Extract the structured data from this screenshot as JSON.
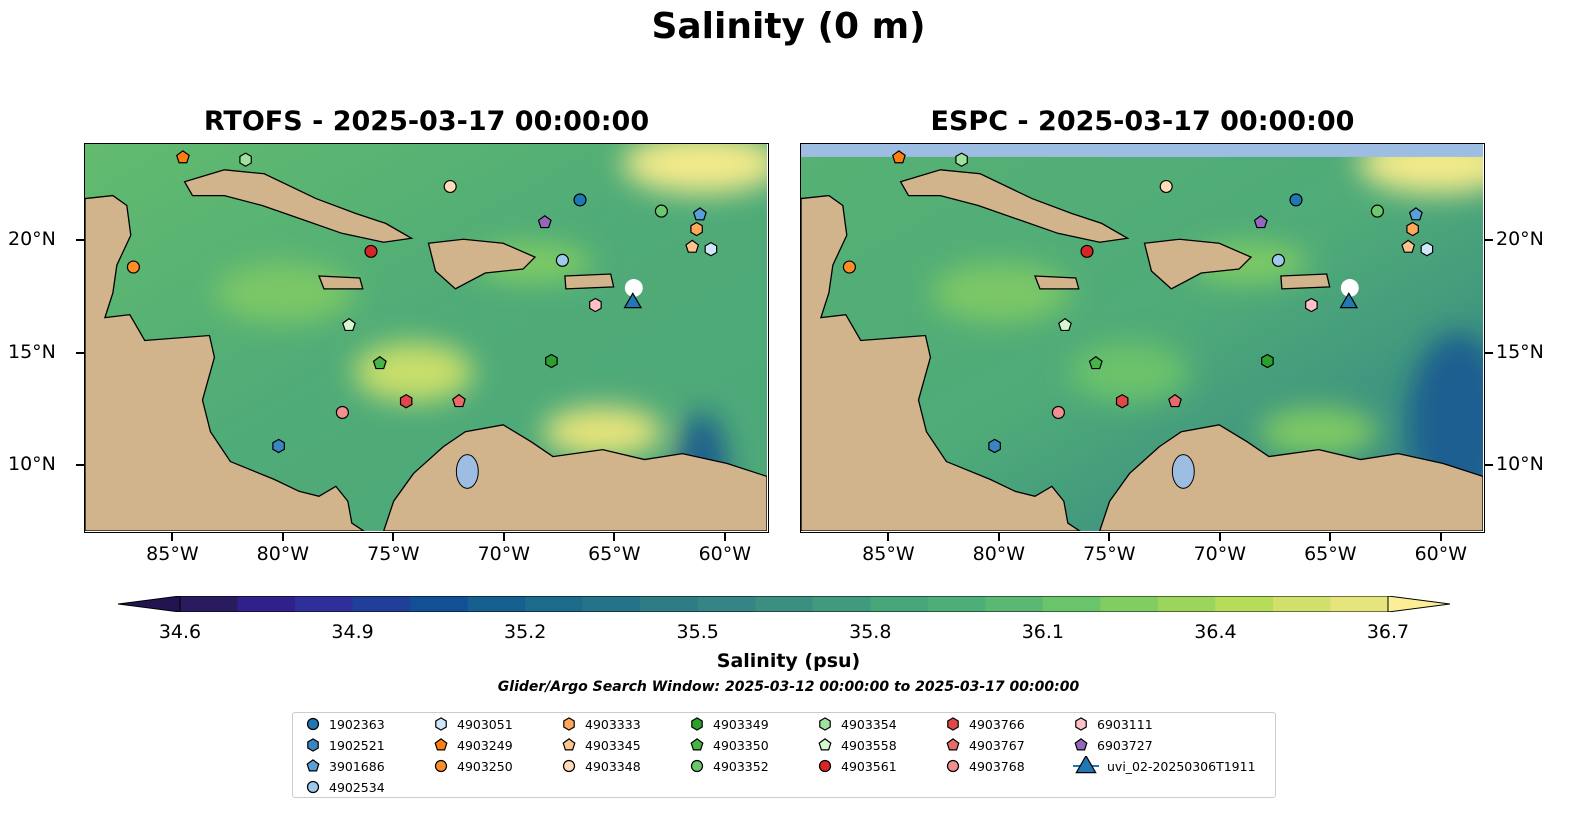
{
  "suptitle": "Salinity (0 m)",
  "panels": [
    {
      "title": "RTOFS - 2025-03-17 00:00:00",
      "model": "RTOFS"
    },
    {
      "title": "ESPC - 2025-03-17 00:00:00",
      "model": "ESPC"
    }
  ],
  "axes": {
    "lon_range": [
      -89,
      -58
    ],
    "lat_range": [
      7,
      24.3
    ],
    "lon_ticks": [
      {
        "v": -85,
        "label": "85°W"
      },
      {
        "v": -80,
        "label": "80°W"
      },
      {
        "v": -75,
        "label": "75°W"
      },
      {
        "v": -70,
        "label": "70°W"
      },
      {
        "v": -65,
        "label": "65°W"
      },
      {
        "v": -60,
        "label": "60°W"
      }
    ],
    "lat_ticks": [
      {
        "v": 20,
        "label": "20°N"
      },
      {
        "v": 15,
        "label": "15°N"
      },
      {
        "v": 10,
        "label": "10°N"
      }
    ]
  },
  "colorbar": {
    "label": "Salinity (psu)",
    "min": 34.6,
    "max": 36.7,
    "step": 0.1,
    "ticks": [
      "34.6",
      "34.9",
      "35.2",
      "35.5",
      "35.8",
      "36.1",
      "36.4",
      "36.7"
    ],
    "colors": [
      "#2a1a5e",
      "#30208a",
      "#2e2f9a",
      "#203f98",
      "#124f94",
      "#16608f",
      "#1c6b8b",
      "#257388",
      "#2e7d86",
      "#348584",
      "#3b8f80",
      "#419a7e",
      "#47a57a",
      "#4daf77",
      "#5ab872",
      "#6ac46b",
      "#82cd62",
      "#9cd55b",
      "#b6dc5a",
      "#d0e06a",
      "#e6e57d"
    ],
    "over_color": "#fbee94",
    "under_color": "#221450"
  },
  "search_window": "Glider/Argo Search Window: 2025-03-12 00:00:00 to 2025-03-17 00:00:00",
  "markers": [
    {
      "id": "1902363",
      "shape": "circle",
      "color": "#1f77b4",
      "lon": -66.5,
      "lat": 21.8
    },
    {
      "id": "1902521",
      "shape": "hexagon",
      "color": "#3a86c0",
      "lon": -80.2,
      "lat": 10.8
    },
    {
      "id": "3901686",
      "shape": "pentagon",
      "color": "#5aa0d8",
      "lon": -61.05,
      "lat": 21.15
    },
    {
      "id": "4902534",
      "shape": "circle",
      "color": "#9ec9ea",
      "lon": -67.3,
      "lat": 19.1
    },
    {
      "id": "4903051",
      "shape": "hexagon",
      "color": "#cfe7fa",
      "lon": -60.55,
      "lat": 19.6
    },
    {
      "id": "4903249",
      "shape": "pentagon",
      "color": "#ff7f0e",
      "lon": -84.55,
      "lat": 23.7
    },
    {
      "id": "4903250",
      "shape": "circle",
      "color": "#ff8c2a",
      "lon": -86.8,
      "lat": 18.8
    },
    {
      "id": "4903333",
      "shape": "hexagon",
      "color": "#ffa75a",
      "lon": -61.2,
      "lat": 20.5
    },
    {
      "id": "4903345",
      "shape": "pentagon",
      "color": "#ffc48e",
      "lon": -61.4,
      "lat": 19.7
    },
    {
      "id": "4903348",
      "shape": "circle",
      "color": "#ffdcb8",
      "lon": -72.4,
      "lat": 22.4
    },
    {
      "id": "4903349",
      "shape": "hexagon",
      "color": "#2ca02c",
      "lon": -67.8,
      "lat": 14.6
    },
    {
      "id": "4903350",
      "shape": "pentagon",
      "color": "#48b448",
      "lon": -75.6,
      "lat": 14.5
    },
    {
      "id": "4903352",
      "shape": "circle",
      "color": "#6cc86c",
      "lon": -62.8,
      "lat": 21.3
    },
    {
      "id": "4903354",
      "shape": "hexagon",
      "color": "#9ee29e",
      "lon": -81.7,
      "lat": 23.6
    },
    {
      "id": "4903558",
      "shape": "pentagon",
      "color": "#d4f7cf",
      "lon": -77.0,
      "lat": 16.2
    },
    {
      "id": "4903561",
      "shape": "circle",
      "color": "#d62728",
      "lon": -76.0,
      "lat": 19.5
    },
    {
      "id": "4903766",
      "shape": "hexagon",
      "color": "#e04848",
      "lon": -74.4,
      "lat": 12.8
    },
    {
      "id": "4903767",
      "shape": "pentagon",
      "color": "#ea6a6a",
      "lon": -72.0,
      "lat": 12.8
    },
    {
      "id": "4903768",
      "shape": "circle",
      "color": "#f29090",
      "lon": -77.3,
      "lat": 12.3
    },
    {
      "id": "6903111",
      "shape": "hexagon",
      "color": "#ffc0c8",
      "lon": -65.8,
      "lat": 17.1
    },
    {
      "id": "6903727",
      "shape": "pentagon",
      "color": "#9467bd",
      "lon": -68.1,
      "lat": 20.8
    },
    {
      "id": "uvi_02-20250306T1911",
      "shape": "triangle",
      "color": "#1f77b4",
      "lon": -64.1,
      "lat": 17.2
    }
  ]
}
